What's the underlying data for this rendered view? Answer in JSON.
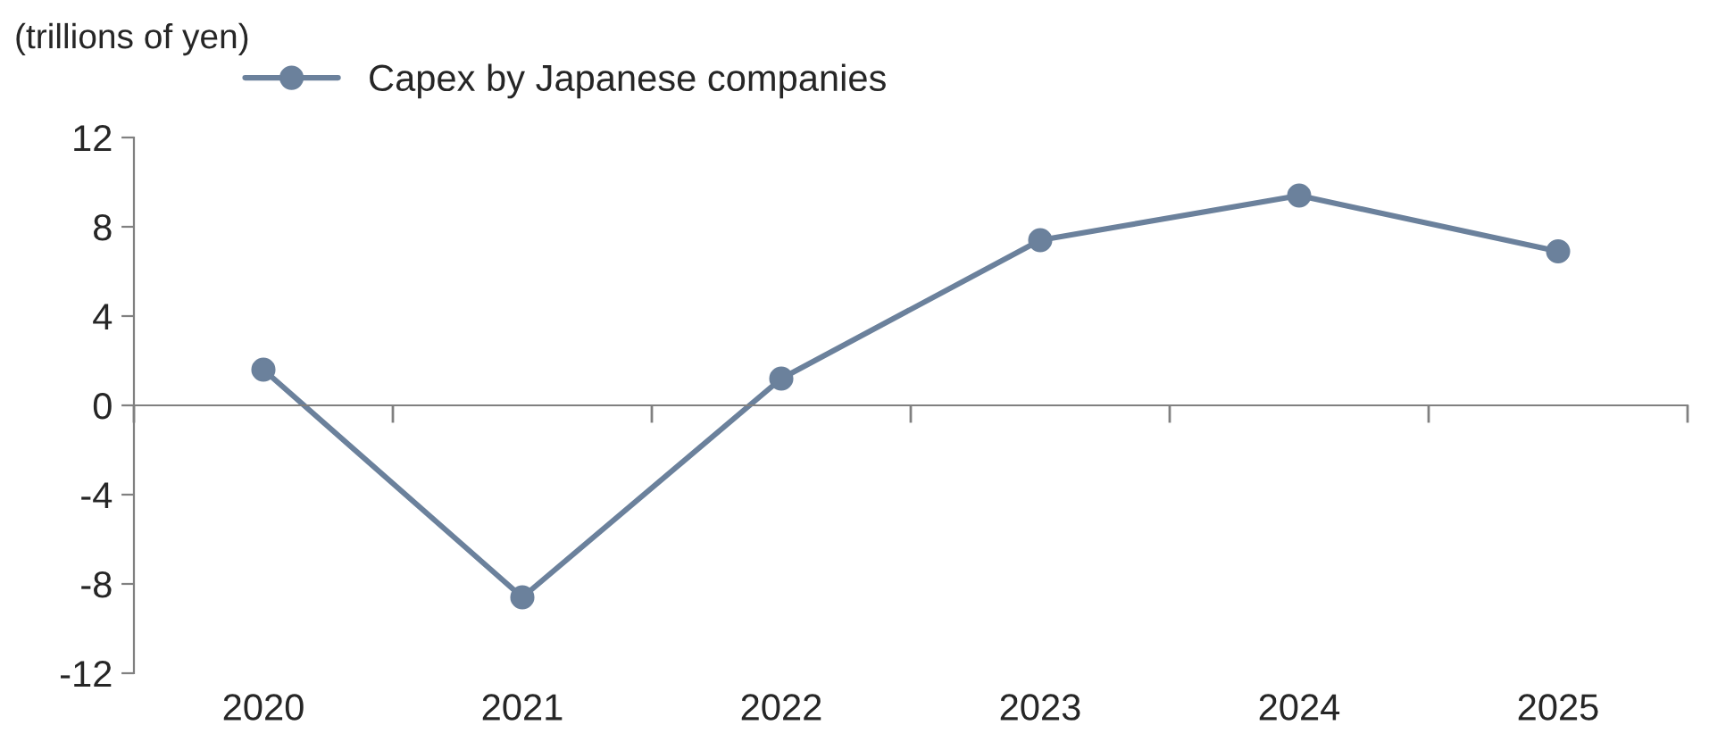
{
  "chart_data": {
    "type": "line",
    "ylabel": "(trillions of yen)",
    "categories": [
      "2020",
      "2021",
      "2022",
      "2023",
      "2024",
      "2025"
    ],
    "series": [
      {
        "name": "Capex by Japanese companies",
        "color": "#6b819c",
        "values": [
          1.6,
          -8.6,
          1.2,
          7.4,
          9.4,
          6.9
        ]
      }
    ],
    "ylim": [
      -12,
      12
    ],
    "yticks": [
      {
        "value": -12,
        "label": "-12"
      },
      {
        "value": -8,
        "label": "-8"
      },
      {
        "value": -4,
        "label": "-4"
      },
      0,
      4,
      8,
      12
    ],
    "legend": "top",
    "marker": "circle",
    "line_style": "solid"
  }
}
